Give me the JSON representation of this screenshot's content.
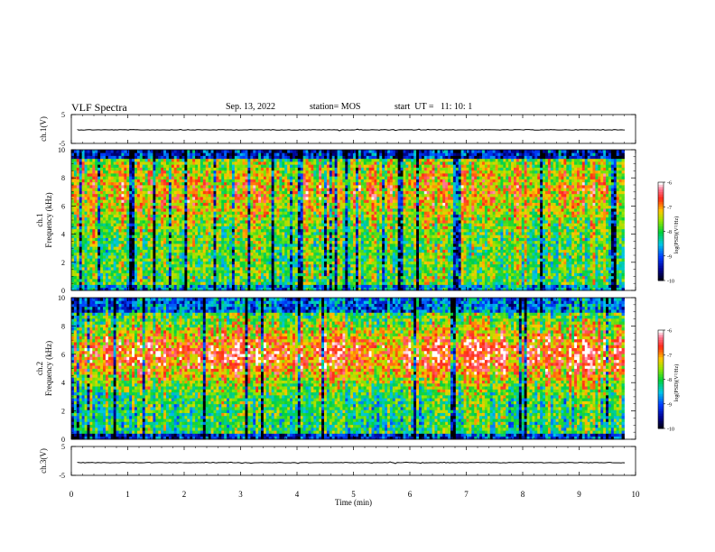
{
  "header": {
    "title": "VLF Spectra",
    "date": "Sep. 13, 2022",
    "station": "station= MOS",
    "start_ut": "start  UT =   11: 10: 1"
  },
  "chart_data": [
    {
      "type": "line",
      "panel": "ch1-waveform",
      "ylabel": "ch.1(V)",
      "ylim": [
        -5,
        5
      ],
      "yticks": [
        "5",
        "-5"
      ],
      "xlim": [
        0,
        10
      ],
      "series": [
        {
          "values_level": -0.3
        }
      ]
    },
    {
      "type": "heatmap",
      "panel": "ch1-spectrogram",
      "ylabel": "ch.1\nFrequency  (kHz)",
      "ylim": [
        0,
        10
      ],
      "yticks": [
        "0",
        "2",
        "4",
        "6",
        "8",
        "10"
      ],
      "xlim": [
        0,
        9.8
      ],
      "colorbar": {
        "label": "log(PSD)(V²/Hz)",
        "ticks": [
          "-6",
          "-7",
          "-8",
          "-9",
          "-10"
        ],
        "range": [
          -10,
          -6
        ]
      }
    },
    {
      "type": "heatmap",
      "panel": "ch2-spectrogram",
      "ylabel": "ch.2\nFrequency  (kHz)",
      "ylim": [
        0,
        10
      ],
      "yticks": [
        "0",
        "2",
        "4",
        "6",
        "8",
        "10"
      ],
      "xlim": [
        0,
        9.8
      ],
      "colorbar": {
        "label": "log(PSD)(V²/Hz)",
        "ticks": [
          "-6",
          "-7",
          "-8",
          "-9",
          "-10"
        ],
        "range": [
          -10,
          -6
        ]
      }
    },
    {
      "type": "line",
      "panel": "ch3-waveform",
      "ylabel": "ch.3(V)",
      "ylim": [
        -5,
        5
      ],
      "yticks": [
        "5",
        "-5"
      ],
      "xlim": [
        0,
        10
      ],
      "series": [
        {
          "values_level": -0.6
        }
      ]
    }
  ],
  "xaxis": {
    "label": "Time  (min)",
    "ticks": [
      "0",
      "1",
      "2",
      "3",
      "4",
      "5",
      "6",
      "7",
      "8",
      "9",
      "10"
    ]
  }
}
